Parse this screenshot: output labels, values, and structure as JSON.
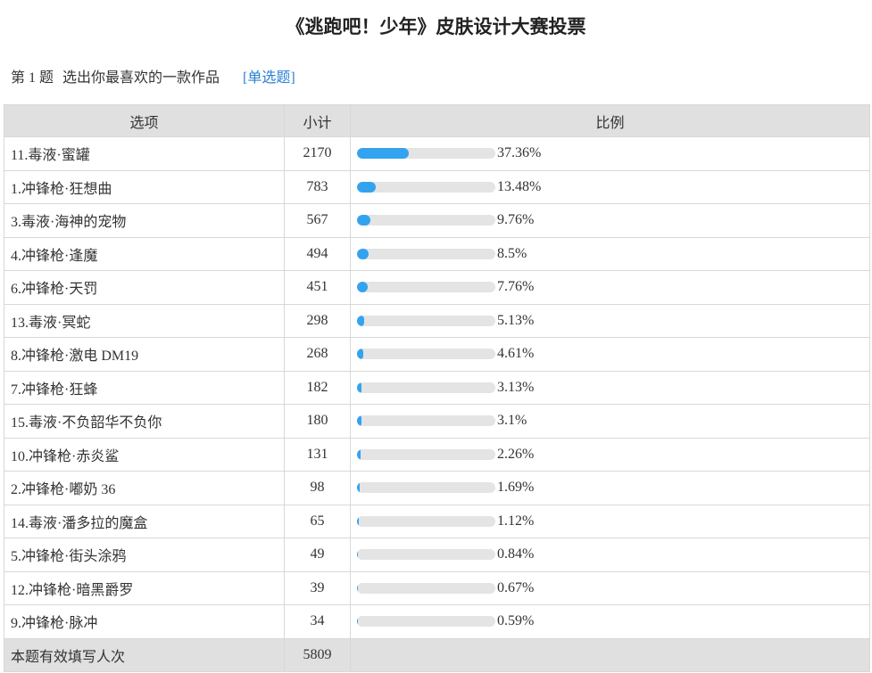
{
  "header": {
    "title": "《逃跑吧！少年》皮肤设计大赛投票"
  },
  "question": {
    "number": "第 1 题",
    "text": "选出你最喜欢的一款作品",
    "type": "[单选题]"
  },
  "table": {
    "columns": [
      "选项",
      "小计",
      "比例"
    ],
    "rows": [
      {
        "option": "11.毒液·蜜罐",
        "count": 2170,
        "percent": {
          "value": 37.36,
          "label": "37.36%"
        }
      },
      {
        "option": "1.冲锋枪·狂想曲",
        "count": 783,
        "percent": {
          "value": 13.48,
          "label": "13.48%"
        }
      },
      {
        "option": "3.毒液·海神的宠物",
        "count": 567,
        "percent": {
          "value": 9.76,
          "label": "9.76%"
        }
      },
      {
        "option": "4.冲锋枪·逢魔",
        "count": 494,
        "percent": {
          "value": 8.5,
          "label": "8.5%"
        }
      },
      {
        "option": "6.冲锋枪·天罚",
        "count": 451,
        "percent": {
          "value": 7.76,
          "label": "7.76%"
        }
      },
      {
        "option": "13.毒液·冥蛇",
        "count": 298,
        "percent": {
          "value": 5.13,
          "label": "5.13%"
        }
      },
      {
        "option": "8.冲锋枪·激电 DM19",
        "count": 268,
        "percent": {
          "value": 4.61,
          "label": "4.61%"
        }
      },
      {
        "option": "7.冲锋枪·狂蜂",
        "count": 182,
        "percent": {
          "value": 3.13,
          "label": "3.13%"
        }
      },
      {
        "option": "15.毒液·不负韶华不负你",
        "count": 180,
        "percent": {
          "value": 3.1,
          "label": "3.1%"
        }
      },
      {
        "option": "10.冲锋枪·赤炎鲨",
        "count": 131,
        "percent": {
          "value": 2.26,
          "label": "2.26%"
        }
      },
      {
        "option": "2.冲锋枪·嘟奶 36",
        "count": 98,
        "percent": {
          "value": 1.69,
          "label": "1.69%"
        }
      },
      {
        "option": "14.毒液·潘多拉的魔盒",
        "count": 65,
        "percent": {
          "value": 1.12,
          "label": "1.12%"
        }
      },
      {
        "option": "5.冲锋枪·街头涂鸦",
        "count": 49,
        "percent": {
          "value": 0.84,
          "label": "0.84%"
        }
      },
      {
        "option": "12.冲锋枪·暗黑爵罗",
        "count": 39,
        "percent": {
          "value": 0.67,
          "label": "0.67%"
        }
      },
      {
        "option": "9.冲锋枪·脉冲",
        "count": 34,
        "percent": {
          "value": 0.59,
          "label": "0.59%"
        }
      }
    ],
    "footer": {
      "label": "本题有效填写人次",
      "count": 5809
    }
  }
}
